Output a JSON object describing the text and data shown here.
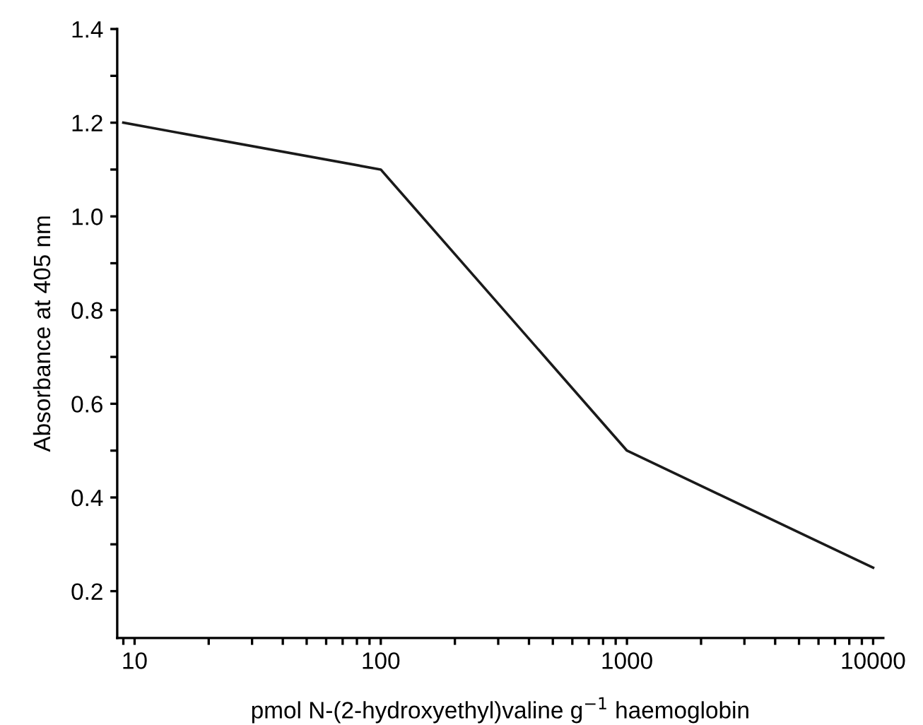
{
  "chart_data": {
    "type": "line",
    "xlabel": "pmol N-(2-hydroxyethyl)valine g$^{−1}$ haemoglobin",
    "ylabel": "Absorbance at 405 nm",
    "log": "x",
    "x": [
      9,
      100,
      1000,
      10000
    ],
    "series": [
      {
        "color": "#1a1a1a",
        "values": [
          1.2,
          1.1,
          0.5,
          0.25
        ]
      }
    ],
    "xlim": [
      8.5,
      11000
    ],
    "ylim": [
      0.1,
      1.4
    ],
    "xticks": [
      {
        "value": 9,
        "label": null
      },
      10,
      {
        "value": 20,
        "label": null
      },
      {
        "value": 30,
        "label": null
      },
      {
        "value": 40,
        "label": null
      },
      {
        "value": 50,
        "label": null
      },
      {
        "value": 60,
        "label": null
      },
      {
        "value": 70,
        "label": null
      },
      {
        "value": 80,
        "label": null
      },
      {
        "value": 90,
        "label": null
      },
      100,
      {
        "value": 200,
        "label": null
      },
      {
        "value": 300,
        "label": null
      },
      {
        "value": 400,
        "label": null
      },
      {
        "value": 500,
        "label": null
      },
      {
        "value": 600,
        "label": null
      },
      {
        "value": 700,
        "label": null
      },
      {
        "value": 800,
        "label": null
      },
      {
        "value": 900,
        "label": null
      },
      1000,
      {
        "value": 2000,
        "label": null
      },
      {
        "value": 3000,
        "label": null
      },
      {
        "value": 4000,
        "label": null
      },
      {
        "value": 5000,
        "label": null
      },
      {
        "value": 6000,
        "label": null
      },
      {
        "value": 7000,
        "label": null
      },
      {
        "value": 8000,
        "label": null
      },
      {
        "value": 9000,
        "label": null
      },
      10000
    ],
    "yticks": [
      {
        "value": 0.2,
        "label": "0.2"
      },
      {
        "value": 0.3,
        "label": null
      },
      {
        "value": 0.4,
        "label": "0.4"
      },
      {
        "value": 0.5,
        "label": null
      },
      {
        "value": 0.6,
        "label": "0.6"
      },
      {
        "value": 0.7,
        "label": null
      },
      {
        "value": 0.8,
        "label": "0.8"
      },
      {
        "value": 0.9,
        "label": null
      },
      {
        "value": 1.0,
        "label": "1.0"
      },
      {
        "value": 1.1,
        "label": null
      },
      {
        "value": 1.2,
        "label": "1.2"
      },
      {
        "value": 1.3,
        "label": null
      },
      {
        "value": 1.4,
        "label": "1.4"
      }
    ],
    "grid": false,
    "legend": false,
    "marker": "none",
    "line_style": "solid"
  }
}
